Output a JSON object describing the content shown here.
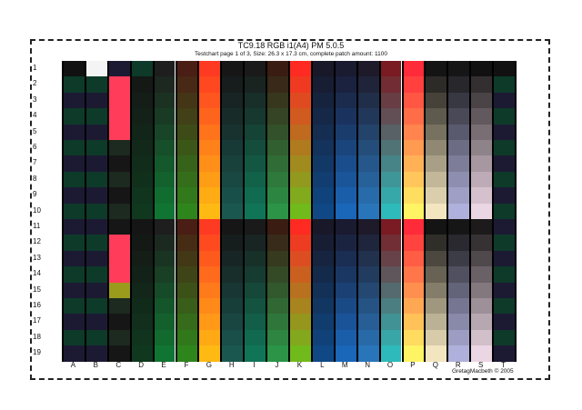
{
  "header": {
    "title": "TC9.18 RGB i1(A4) PM 5.0.5",
    "subtitle": "Testchart page 1 of 3, Size: 26.3 x 17.3 cm, complete patch amount: 1100"
  },
  "rows": [
    "1",
    "2",
    "3",
    "4",
    "5",
    "6",
    "7",
    "8",
    "9",
    "10",
    "11",
    "12",
    "13",
    "14",
    "15",
    "16",
    "17",
    "18",
    "19"
  ],
  "columns": [
    "A",
    "B",
    "C",
    "D",
    "E",
    "F",
    "G",
    "H",
    "I",
    "J",
    "K",
    "L",
    "M",
    "N",
    "O",
    "P",
    "Q",
    "R",
    "S",
    "T"
  ],
  "footer": {
    "copyright": "GretagMacbeth © 2005"
  },
  "palette": {
    "A": {
      "top": "#111111",
      "base1": "#1c1a33",
      "base2": "#0e3a2a"
    },
    "B": {
      "top": "#f4f4f4",
      "base1": "#1c1a33",
      "base2": "#0e3a2a"
    },
    "C": {
      "top": "#1c1a33",
      "accent": "#ff3c5a"
    },
    "D": {
      "top": "#0e3a2a",
      "from": "#151515",
      "to": "#0f3a1f"
    },
    "E": {
      "from": "#1e1e1e",
      "to": "#0f7a33"
    },
    "F": {
      "from": "#4a1e14",
      "to": "#2c8a1c"
    },
    "G": {
      "from": "#ff3a22",
      "to": "#ffc012"
    },
    "H": {
      "from": "#161616",
      "to": "#1a5a52"
    },
    "I": {
      "from": "#1a1a1a",
      "to": "#0f7a5a"
    },
    "J": {
      "from": "#3a1c12",
      "to": "#2a9a4a"
    },
    "K": {
      "from": "#ff2a22",
      "to": "#6ac21c"
    },
    "L": {
      "from": "#181828",
      "to": "#0e4a8a"
    },
    "M": {
      "from": "#1a1a30",
      "to": "#1a6ac0"
    },
    "N": {
      "from": "#1e1a2a",
      "to": "#2a7ac2"
    },
    "O": {
      "from": "#7a1a22",
      "to": "#2ac2c2"
    },
    "P": {
      "from": "#ff2a3a",
      "to": "#ffff66"
    },
    "Q": {
      "from": "#141414",
      "to": "#fff0c8"
    },
    "R": {
      "from": "#161616",
      "to": "#b8b8e6"
    },
    "S": {
      "top": "#111111",
      "from": "#1c1a1a",
      "to": "#f6e0ee"
    },
    "T": {
      "top": "#111111",
      "base1": "#1c1a33",
      "base2": "#0e3a2a"
    }
  }
}
